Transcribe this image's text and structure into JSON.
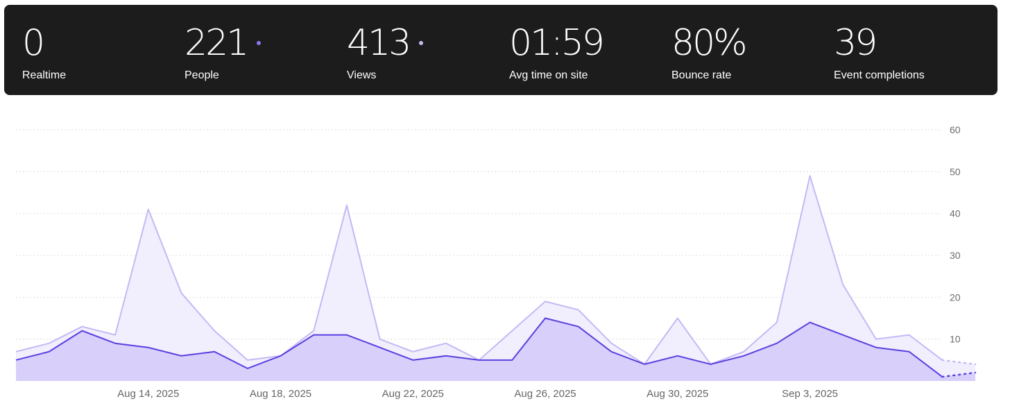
{
  "stats": {
    "realtime": {
      "value": "0",
      "label": "Realtime"
    },
    "people": {
      "value": "221",
      "label": "People"
    },
    "views": {
      "value": "413",
      "label": "Views"
    },
    "avg_time": {
      "value": "01:59",
      "label": "Avg time on site"
    },
    "bounce": {
      "value": "80%",
      "label": "Bounce rate"
    },
    "events": {
      "value": "39",
      "label": "Event completions"
    }
  },
  "colors": {
    "views_line": "#c4b9f5",
    "views_fill": "#f1eefd",
    "people_line": "#5b3fe0",
    "people_fill": "#d8d0fa",
    "dot_people": "#8b76f0",
    "dot_views": "#c4b9f5",
    "grid": "#dcdcdc"
  },
  "chart_data": {
    "type": "area",
    "x": [
      "Aug 10, 2025",
      "Aug 11, 2025",
      "Aug 12, 2025",
      "Aug 13, 2025",
      "Aug 14, 2025",
      "Aug 15, 2025",
      "Aug 16, 2025",
      "Aug 17, 2025",
      "Aug 18, 2025",
      "Aug 19, 2025",
      "Aug 20, 2025",
      "Aug 21, 2025",
      "Aug 22, 2025",
      "Aug 23, 2025",
      "Aug 24, 2025",
      "Aug 25, 2025",
      "Aug 26, 2025",
      "Aug 27, 2025",
      "Aug 28, 2025",
      "Aug 29, 2025",
      "Aug 30, 2025",
      "Aug 31, 2025",
      "Sep 1, 2025",
      "Sep 2, 2025",
      "Sep 3, 2025",
      "Sep 4, 2025",
      "Sep 5, 2025",
      "Sep 6, 2025",
      "Sep 7, 2025",
      "Sep 8, 2025"
    ],
    "x_tick_labels": [
      "Aug 14, 2025",
      "Aug 18, 2025",
      "Aug 22, 2025",
      "Aug 26, 2025",
      "Aug 30, 2025",
      "Sep 3, 2025"
    ],
    "x_tick_indices": [
      4,
      8,
      12,
      16,
      20,
      24
    ],
    "series": [
      {
        "name": "Views",
        "values": [
          7,
          9,
          13,
          11,
          41,
          21,
          12,
          5,
          6,
          12,
          42,
          10,
          7,
          9,
          5,
          12,
          19,
          17,
          9,
          4,
          15,
          4,
          7,
          14,
          49,
          23,
          10,
          11,
          5,
          4
        ]
      },
      {
        "name": "People",
        "values": [
          5,
          7,
          12,
          9,
          8,
          6,
          7,
          3,
          6,
          11,
          11,
          8,
          5,
          6,
          5,
          5,
          15,
          13,
          7,
          4,
          6,
          4,
          6,
          9,
          14,
          11,
          8,
          7,
          1,
          2
        ]
      }
    ],
    "partial_last_segment": true,
    "yticks": [
      10,
      20,
      30,
      40,
      50,
      60
    ],
    "ylim": [
      0,
      60
    ],
    "grid": true,
    "y_axis_position": "right",
    "title": "",
    "xlabel": "",
    "ylabel": ""
  }
}
